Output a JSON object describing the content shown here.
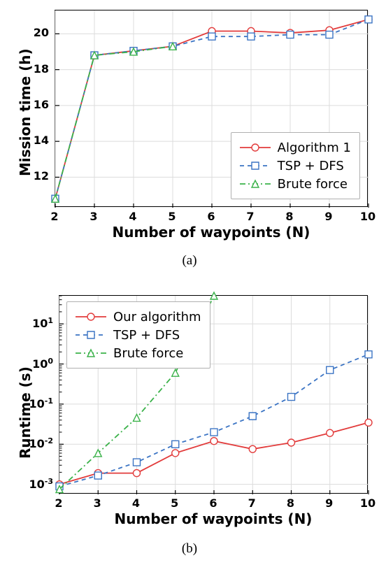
{
  "captions": {
    "a": "(a)",
    "b": "(b)"
  },
  "chart_a": {
    "type": "line",
    "xlabel": "Number of waypoints (N)",
    "ylabel": "Mission time (h)",
    "label_fontsize": 20,
    "tick_fontsize": 16,
    "xlim": [
      2,
      10
    ],
    "ylim": [
      10.3,
      21.3
    ],
    "xticks": [
      2,
      3,
      4,
      5,
      6,
      7,
      8,
      9,
      10
    ],
    "yticks": [
      12,
      14,
      16,
      18,
      20
    ],
    "grid_color": "#dcdcdc",
    "border_color": "#000000",
    "background": "#ffffff",
    "series": [
      {
        "name": "Algorithm 1",
        "color": "#e23b3b",
        "dash": "solid",
        "marker": "circle-open",
        "marker_size": 5,
        "line_width": 1.8,
        "x": [
          2,
          3,
          4,
          5,
          6,
          7,
          8,
          9,
          10
        ],
        "y": [
          10.8,
          18.8,
          19.05,
          19.3,
          20.15,
          20.15,
          20.05,
          20.2,
          20.8
        ]
      },
      {
        "name": "TSP + DFS",
        "color": "#3b74c4",
        "dash": "6,5",
        "marker": "square-open",
        "marker_size": 5,
        "line_width": 1.8,
        "x": [
          2,
          3,
          4,
          5,
          6,
          7,
          8,
          9,
          10
        ],
        "y": [
          10.8,
          18.8,
          19.05,
          19.3,
          19.85,
          19.85,
          19.95,
          19.95,
          20.8
        ]
      },
      {
        "name": "Brute force",
        "color": "#3bb24a",
        "dash": "8,4,2,4",
        "marker": "triangle-open",
        "marker_size": 5,
        "line_width": 1.8,
        "x": [
          2,
          3,
          4,
          5
        ],
        "y": [
          10.8,
          18.8,
          19.0,
          19.3
        ]
      }
    ],
    "legend": {
      "position": "lower-right",
      "items": [
        {
          "label": "Algorithm 1",
          "series": 0
        },
        {
          "label": "TSP + DFS",
          "series": 1
        },
        {
          "label": "Brute force",
          "series": 2
        }
      ]
    }
  },
  "chart_b": {
    "type": "line",
    "xlabel": "Number of waypoints (N)",
    "ylabel": "Runtime (s)",
    "label_fontsize": 20,
    "tick_fontsize": 16,
    "xlim": [
      2,
      10
    ],
    "yscale": "log",
    "ylim_log10": [
      -3.25,
      1.7
    ],
    "xticks": [
      2,
      3,
      4,
      5,
      6,
      7,
      8,
      9,
      10
    ],
    "ytick_exps": [
      -3,
      -2,
      -1,
      0,
      1
    ],
    "grid_color": "#dcdcdc",
    "border_color": "#000000",
    "background": "#ffffff",
    "series": [
      {
        "name": "Our algorithm",
        "color": "#e23b3b",
        "dash": "solid",
        "marker": "circle-open",
        "marker_size": 5,
        "line_width": 1.8,
        "x": [
          2,
          3,
          4,
          5,
          6,
          7,
          8,
          9,
          10
        ],
        "y_log10": [
          -3.0,
          -2.72,
          -2.72,
          -2.22,
          -1.92,
          -2.12,
          -1.96,
          -1.72,
          -1.46
        ]
      },
      {
        "name": "TSP + DFS",
        "color": "#3b74c4",
        "dash": "6,5",
        "marker": "square-open",
        "marker_size": 5,
        "line_width": 1.8,
        "x": [
          2,
          3,
          4,
          5,
          6,
          7,
          8,
          9,
          10
        ],
        "y_log10": [
          -3.05,
          -2.78,
          -2.45,
          -2.0,
          -1.7,
          -1.3,
          -0.82,
          -0.15,
          0.24
        ]
      },
      {
        "name": "Brute force",
        "color": "#3bb24a",
        "dash": "8,4,2,4",
        "marker": "triangle-open",
        "marker_size": 5,
        "line_width": 1.8,
        "x": [
          2,
          3,
          4,
          5,
          6
        ],
        "y_log10": [
          -3.12,
          -2.22,
          -1.34,
          -0.22,
          1.7
        ]
      }
    ],
    "legend": {
      "position": "upper-left",
      "items": [
        {
          "label": "Our algorithm",
          "series": 0
        },
        {
          "label": "TSP + DFS",
          "series": 1
        },
        {
          "label": "Brute force",
          "series": 2
        }
      ]
    }
  }
}
